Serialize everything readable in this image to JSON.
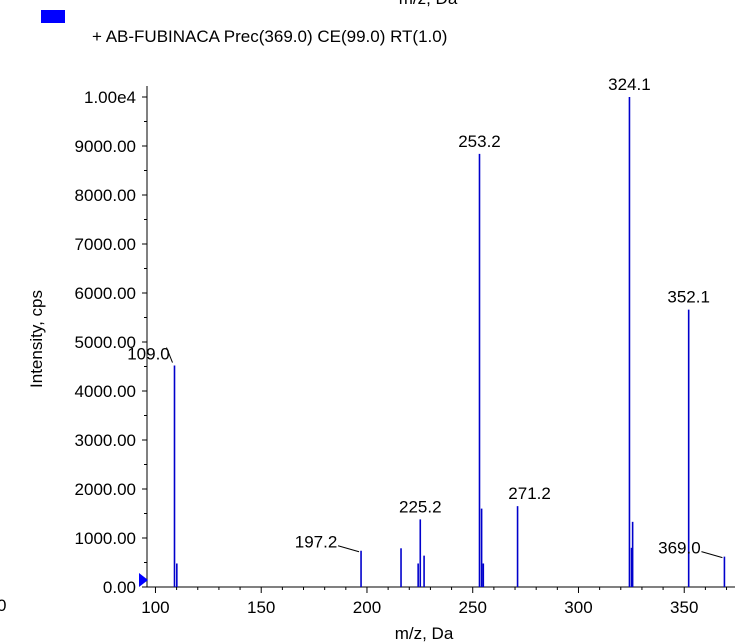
{
  "top_cutoff_text": "m/z, Da",
  "left_cutoff_text": "0",
  "legend": {
    "swatch_color": "#0000ff",
    "label": "+ AB-FUBINACA Prec(369.0) CE(99.0) RT(1.0)"
  },
  "colors": {
    "bar": "#0000cc",
    "marker": "#0000ff",
    "axis": "#000000"
  },
  "chart_data": {
    "type": "bar",
    "title": "",
    "xlabel": "m/z, Da",
    "ylabel": "Intensity, cps",
    "xlim": [
      96,
      374
    ],
    "ylim": [
      0,
      10000
    ],
    "x_ticks": [
      100,
      150,
      200,
      250,
      300,
      350
    ],
    "x_tick_labels": [
      "100",
      "150",
      "200",
      "250",
      "300",
      "350"
    ],
    "y_ticks": [
      0,
      1000,
      2000,
      3000,
      4000,
      5000,
      6000,
      7000,
      8000,
      9000,
      10000
    ],
    "y_tick_labels": [
      "0.00",
      "1000.00",
      "2000.00",
      "3000.00",
      "4000.00",
      "5000.00",
      "6000.00",
      "7000.00",
      "8000.00",
      "9000.00",
      "1.00e4"
    ],
    "peaks": [
      {
        "mz": 109.0,
        "intensity": 4520
      },
      {
        "mz": 110.1,
        "intensity": 480
      },
      {
        "mz": 197.2,
        "intensity": 740
      },
      {
        "mz": 216.1,
        "intensity": 790
      },
      {
        "mz": 224.2,
        "intensity": 480
      },
      {
        "mz": 225.2,
        "intensity": 1380
      },
      {
        "mz": 227.0,
        "intensity": 640
      },
      {
        "mz": 253.2,
        "intensity": 8840
      },
      {
        "mz": 254.2,
        "intensity": 1600
      },
      {
        "mz": 255.0,
        "intensity": 480
      },
      {
        "mz": 271.2,
        "intensity": 1650
      },
      {
        "mz": 324.1,
        "intensity": 10000
      },
      {
        "mz": 325.1,
        "intensity": 800
      },
      {
        "mz": 325.6,
        "intensity": 1330
      },
      {
        "mz": 352.1,
        "intensity": 5660
      },
      {
        "mz": 369.0,
        "intensity": 620
      }
    ],
    "annotations": [
      {
        "text": "109.0",
        "mz": 109.0,
        "intensity": 4520
      },
      {
        "text": "197.2",
        "mz": 197.2,
        "intensity": 740
      },
      {
        "text": "225.2",
        "mz": 225.2,
        "intensity": 1380
      },
      {
        "text": "253.2",
        "mz": 253.2,
        "intensity": 8840
      },
      {
        "text": "271.2",
        "mz": 271.2,
        "intensity": 1650
      },
      {
        "text": "324.1",
        "mz": 324.1,
        "intensity": 10000
      },
      {
        "text": "352.1",
        "mz": 352.1,
        "intensity": 5660
      },
      {
        "text": "369.0",
        "mz": 369.0,
        "intensity": 620
      }
    ]
  }
}
